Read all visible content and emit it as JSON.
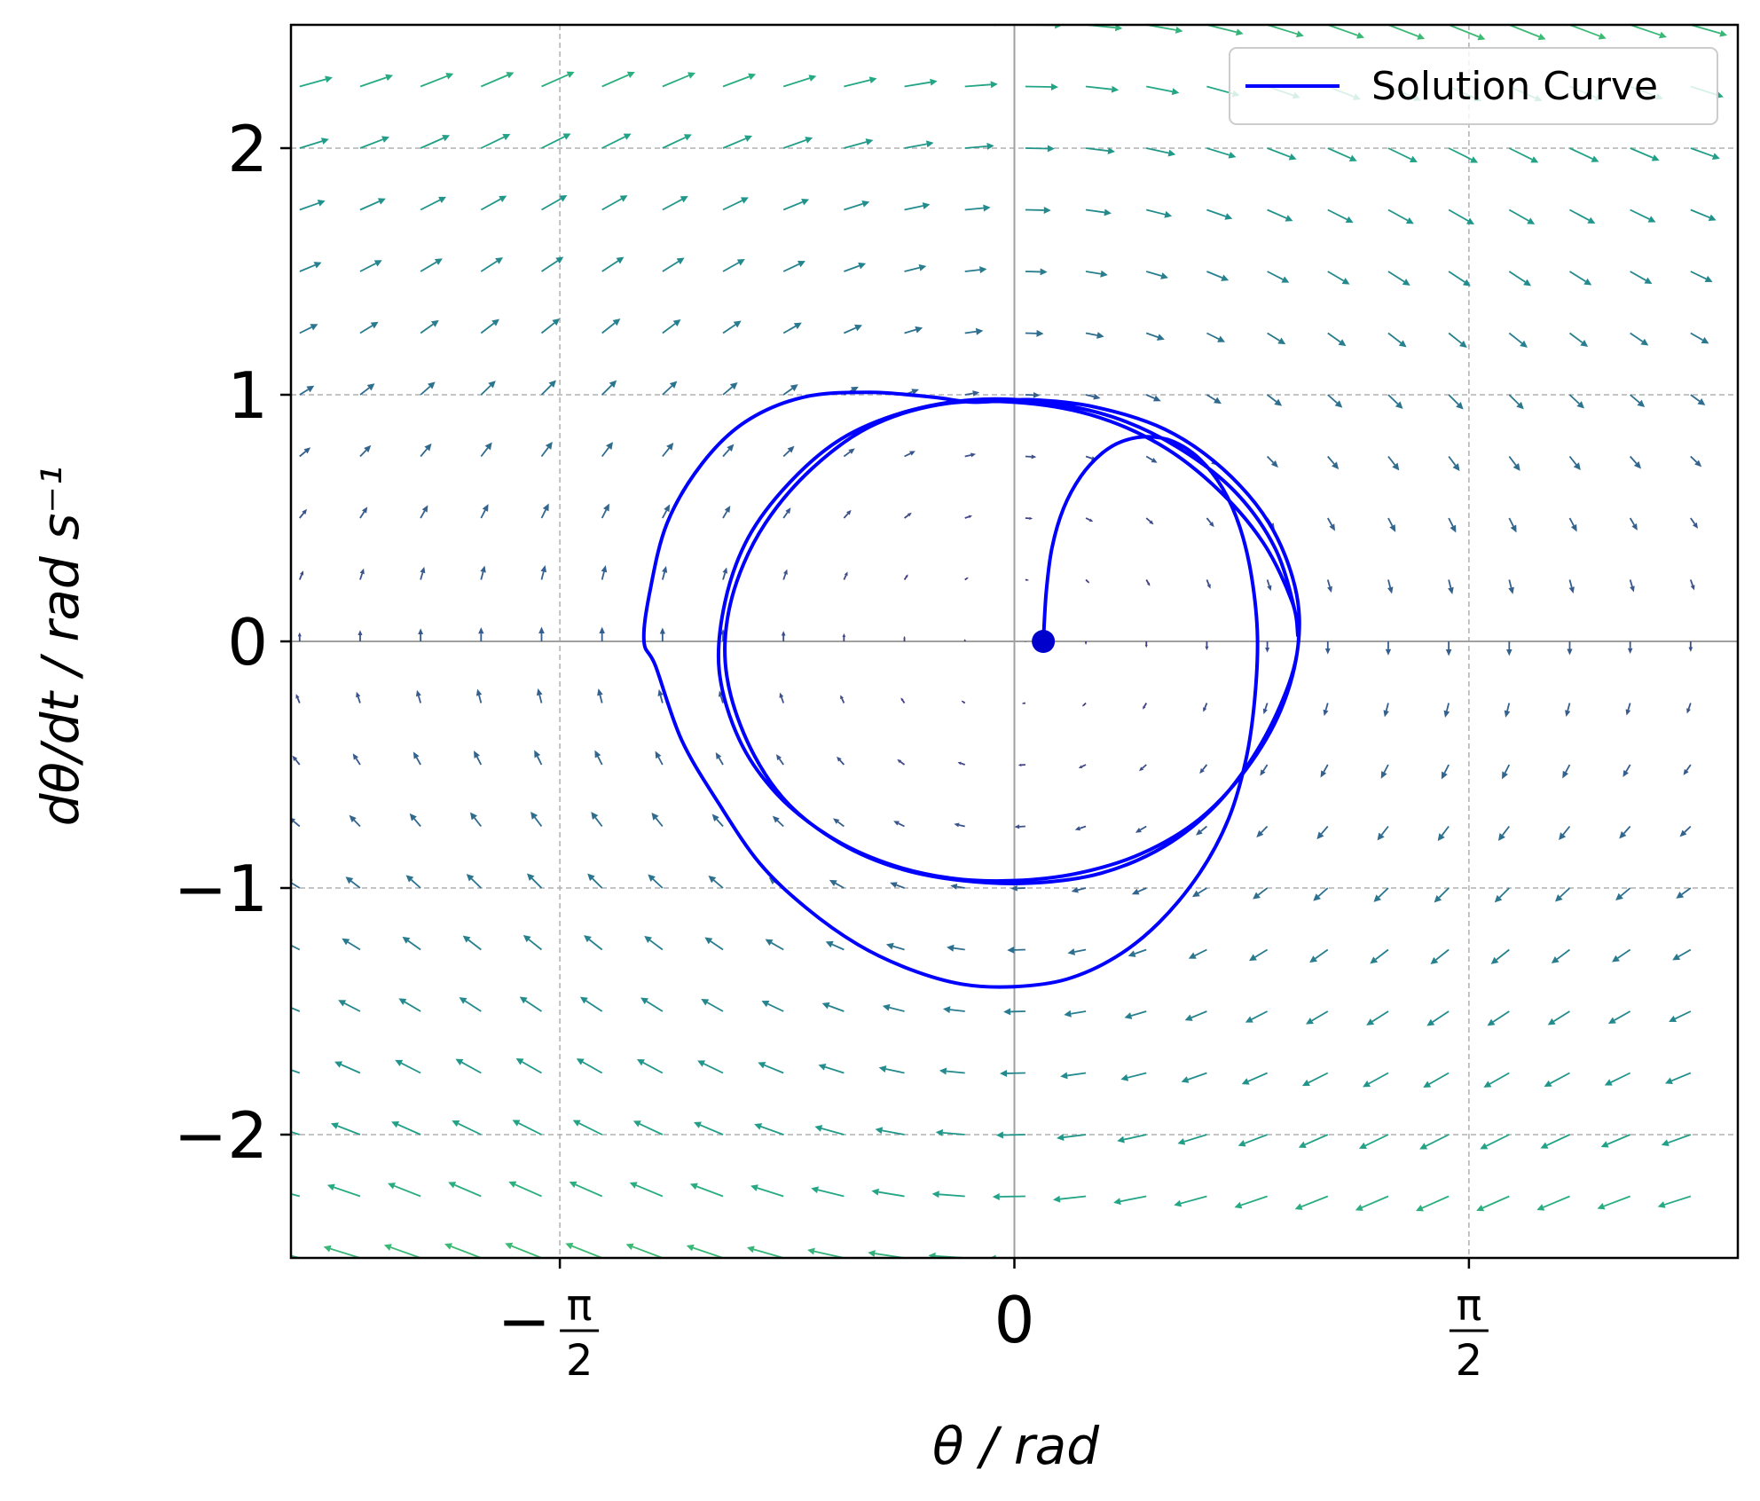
{
  "chart_data": {
    "type": "line",
    "title": "",
    "xlabel": "θ / rad",
    "ylabel": "dθ/dt / rad s⁻¹",
    "xlim": [
      -2.5,
      2.5
    ],
    "ylim": [
      -2.5,
      2.5
    ],
    "xticks": [
      {
        "value": -1.5708,
        "sign": "−",
        "num": "π",
        "den": "2"
      },
      {
        "value": 0,
        "label": "0"
      },
      {
        "value": 1.5708,
        "sign": "",
        "num": "π",
        "den": "2"
      }
    ],
    "yticks": [
      {
        "value": 2,
        "label": "2"
      },
      {
        "value": 1,
        "label": "1"
      },
      {
        "value": 0,
        "label": "0"
      },
      {
        "value": -1,
        "label": "−1"
      },
      {
        "value": -2,
        "label": "−2"
      }
    ],
    "grid": true,
    "grid_style": "dashed",
    "legend": {
      "position": "top-right",
      "entries": [
        "Solution Curve"
      ]
    },
    "colors": {
      "solution": "#0000ff",
      "start_point": "#0000cc",
      "quiver_colormap": "viridis"
    },
    "vector_field": {
      "description_of_system": "pendulum-like phase-plane direction field",
      "x_step": 0.209,
      "y_step": 0.25,
      "x_start": -2.47,
      "y_start": -2.5
    },
    "series": [
      {
        "name": "Solution Curve",
        "start_point": [
          0.1,
          0.0
        ],
        "x": [
          0.1,
          0.11,
          0.13,
          0.17,
          0.23,
          0.3,
          0.37,
          0.46,
          0.55,
          0.64,
          0.72,
          0.78,
          0.82,
          0.84,
          0.83,
          0.8,
          0.74,
          0.64,
          0.5,
          0.35,
          0.18,
          0.0,
          -0.18,
          -0.36,
          -0.54,
          -0.72,
          -0.88,
          -1.02,
          -1.15,
          -1.24,
          -1.28,
          -1.26,
          -1.2,
          -1.08,
          -0.93,
          -0.73,
          -0.5,
          -0.28,
          -0.14,
          0.05,
          0.28,
          0.52,
          0.72,
          0.88,
          0.97,
          0.98,
          0.92,
          0.8,
          0.64,
          0.44,
          0.22,
          0.0,
          -0.22,
          -0.44,
          -0.64,
          -0.82,
          -0.95,
          -1.02,
          -1.0,
          -0.92,
          -0.78,
          -0.6,
          -0.38,
          -0.14,
          0.1,
          0.34,
          0.56,
          0.76,
          0.9,
          0.97,
          0.98,
          0.94,
          0.84,
          0.7,
          0.52,
          0.3,
          0.06,
          -0.18,
          -0.4,
          -0.6,
          -0.78,
          -0.9,
          -0.98,
          -1.0,
          -0.96,
          -0.86,
          -0.7,
          -0.5,
          -0.26,
          0.0,
          0.26,
          0.5,
          0.7,
          0.86,
          0.96,
          0.98
        ],
        "y": [
          0.0,
          0.2,
          0.38,
          0.54,
          0.67,
          0.76,
          0.81,
          0.83,
          0.81,
          0.74,
          0.62,
          0.46,
          0.26,
          0.02,
          -0.24,
          -0.48,
          -0.72,
          -0.94,
          -1.14,
          -1.28,
          -1.37,
          -1.4,
          -1.39,
          -1.33,
          -1.23,
          -1.08,
          -0.9,
          -0.66,
          -0.4,
          -0.1,
          0.0,
          0.2,
          0.48,
          0.72,
          0.89,
          0.99,
          1.01,
          0.99,
          0.97,
          0.98,
          0.95,
          0.86,
          0.7,
          0.48,
          0.22,
          -0.02,
          -0.28,
          -0.52,
          -0.72,
          -0.86,
          -0.94,
          -0.97,
          -0.96,
          -0.9,
          -0.79,
          -0.62,
          -0.4,
          -0.12,
          0.16,
          0.42,
          0.64,
          0.82,
          0.93,
          0.98,
          0.97,
          0.91,
          0.79,
          0.61,
          0.38,
          0.12,
          -0.02,
          -0.2,
          -0.44,
          -0.66,
          -0.83,
          -0.94,
          -0.98,
          -0.97,
          -0.92,
          -0.82,
          -0.66,
          -0.46,
          -0.22,
          0.0,
          0.24,
          0.48,
          0.7,
          0.87,
          0.96,
          0.97,
          0.92,
          0.8,
          0.62,
          0.4,
          0.16,
          0.02
        ]
      }
    ]
  }
}
